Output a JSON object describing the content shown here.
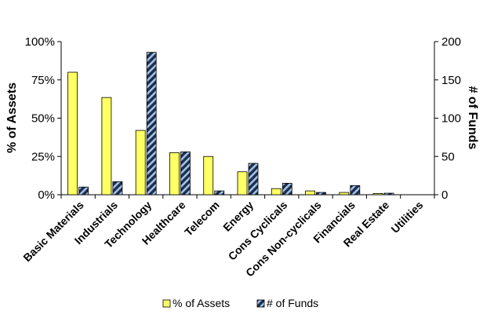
{
  "chart_data": {
    "type": "bar",
    "categories": [
      "Basic Materials",
      "Industrials",
      "Technology",
      "Healthcare",
      "Telecom",
      "Energy",
      "Cons Cyclicals",
      "Cons Non-cyclicals",
      "Financials",
      "Real Estate",
      "Utilities"
    ],
    "series": [
      {
        "name": "% of Assets",
        "axis": "left",
        "color": "#ffff66",
        "values": [
          80,
          63.5,
          42,
          27.5,
          25,
          15,
          4,
          2.5,
          1.5,
          0.8,
          0
        ]
      },
      {
        "name": "# of Funds",
        "axis": "right",
        "color": "#1f2d4a",
        "hatch": "#9ec3ea",
        "values": [
          10,
          17,
          186,
          56,
          5,
          41,
          15,
          3,
          12,
          2,
          0
        ]
      }
    ],
    "ylabel": "% of Assets",
    "y2label": "# of Funds",
    "ylim": [
      0,
      100
    ],
    "y2lim": [
      0,
      200
    ],
    "yticks": [
      0,
      25,
      50,
      75,
      100
    ],
    "y2ticks": [
      0,
      50,
      100,
      150,
      200
    ],
    "ytick_labels": [
      "0%",
      "25%",
      "50%",
      "75%",
      "100%"
    ],
    "y2tick_labels": [
      "0",
      "50",
      "100",
      "150",
      "200"
    ],
    "legend": "bottom",
    "grid": false
  }
}
